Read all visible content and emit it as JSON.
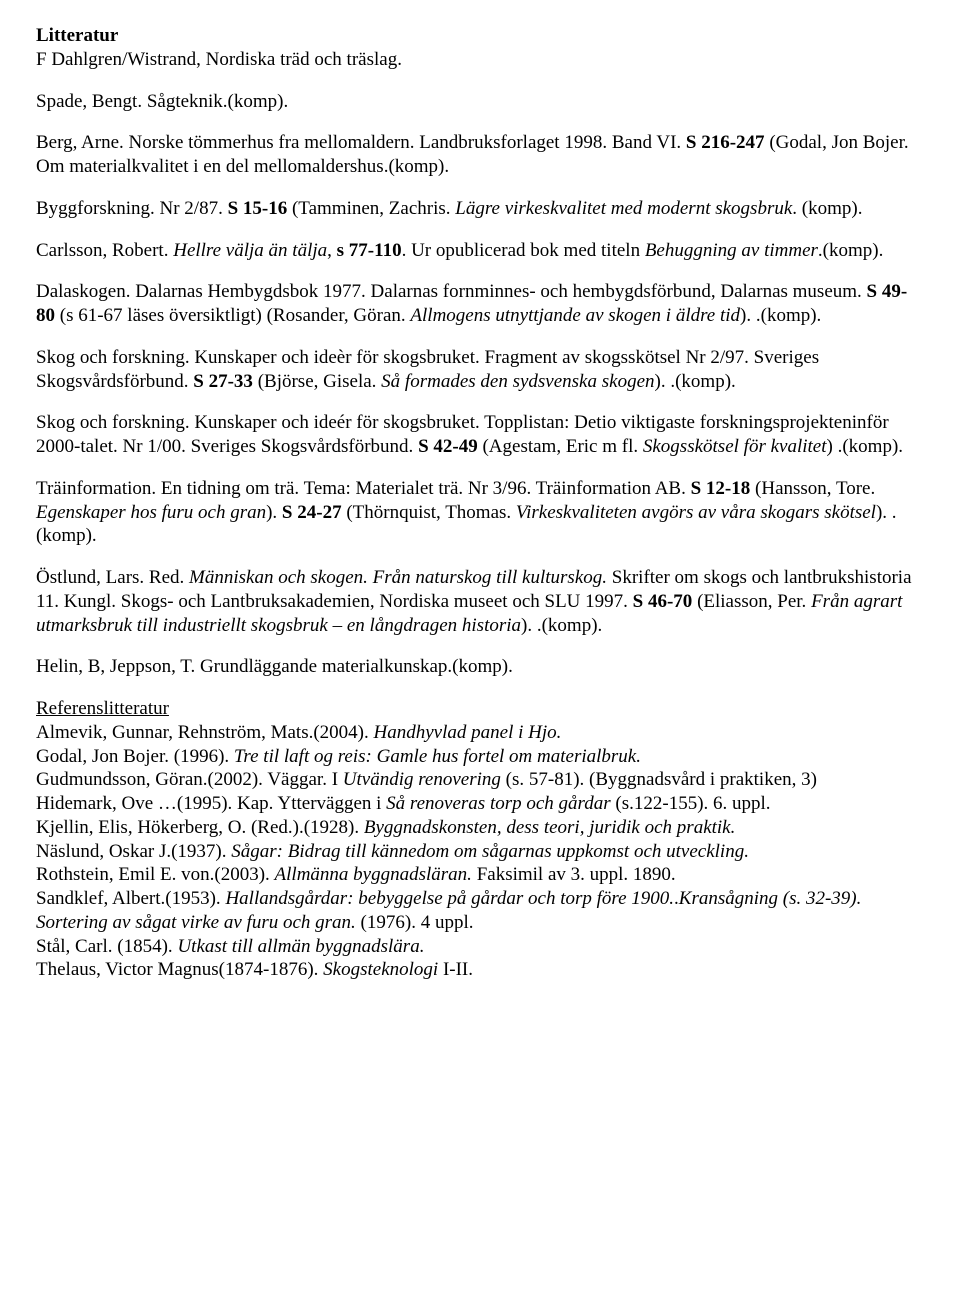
{
  "heading": "Litteratur",
  "p1_line1": "F Dahlgren/Wistrand, Nordiska träd och träslag.",
  "p2_line1": "Spade, Bengt. Sågteknik.(komp).",
  "p3": {
    "a": "Berg, Arne. Norske tömmerhus fra mellomaldern. Landbruksforlaget 1998. Band VI. ",
    "b": "S 216-247",
    "c": " (Godal, Jon Bojer. Om materialkvalitet i en del mellomaldershus.(komp)."
  },
  "p4": {
    "a": "Byggforskning. Nr 2/87. ",
    "b": "S 15-16",
    "c": " (Tamminen, Zachris. ",
    "d": "Lägre virkeskvalitet med modernt skogsbruk",
    "e": ". (komp)."
  },
  "p5": {
    "a": "Carlsson, Robert. ",
    "b": "Hellre välja än tälja",
    "c": ", ",
    "d": "s 77-110",
    "e": ". Ur opublicerad bok med titeln ",
    "f": "Behuggning av timmer",
    "g": ".(komp)."
  },
  "p6": {
    "a": "Dalaskogen. Dalarnas Hembygdsbok 1977. Dalarnas fornminnes- och hembygdsförbund, Dalarnas museum. ",
    "b": "S 49-80",
    "c": " (s 61-67 läses översiktligt) (Rosander, Göran. ",
    "d": "Allmogens utnyttjande av skogen i äldre tid",
    "e": "). .(komp)."
  },
  "p7": {
    "a": "Skog och forskning. Kunskaper och ideèr för skogsbruket. Fragment av skogsskötsel Nr 2/97. Sveriges Skogsvårdsförbund. ",
    "b": "S 27-33",
    "c": " (Björse, Gisela. ",
    "d": "Så formades den sydsvenska skogen",
    "e": "). .(komp)."
  },
  "p8": {
    "a": "Skog och forskning. Kunskaper och ideér för skogsbruket. Topplistan: Detio viktigaste forskningsprojekteninför 2000-talet. Nr 1/00. Sveriges Skogsvårdsförbund. ",
    "b": "S 42-49",
    "c": " (Agestam, Eric m fl. ",
    "d": "Skogsskötsel för kvalitet",
    "e": ") .(komp)."
  },
  "p9": {
    "a": "Träinformation. En tidning om trä. Tema: Materialet trä. Nr 3/96. Träinformation AB. ",
    "b": "S 12-18",
    "c": " (Hansson, Tore. ",
    "d": "Egenskaper hos furu och gran",
    "e": "). ",
    "f": "S 24-27",
    "g": " (Thörnquist, Thomas. ",
    "h": "Virkeskvaliteten avgörs av våra skogars skötsel",
    "i": "). .(komp)."
  },
  "p10": {
    "a": "Östlund, Lars. Red. ",
    "b": "Människan och skogen. Från naturskog till kulturskog.",
    "c": " Skrifter om skogs och lantbrukshistoria 11. Kungl. Skogs- och Lantbruksakademien, Nordiska museet och SLU 1997. ",
    "d": "S 46-70",
    "e": " (Eliasson, Per. ",
    "f": "Från agrart utmarksbruk till industriellt skogsbruk – en långdragen historia",
    "g": "). .(komp)."
  },
  "p11": "Helin, B, Jeppson, T. Grundläggande materialkunskap.(komp).",
  "ref_head": "Referenslitteratur",
  "r1": {
    "a": "Almevik, Gunnar, Rehnström, Mats.(2004). ",
    "b": "Handhyvlad panel i Hjo."
  },
  "r2": {
    "a": "Godal, Jon Bojer. (1996). ",
    "b": "Tre til laft og reis: Gamle hus fortel om materialbruk."
  },
  "r3": {
    "a": "Gudmundsson, Göran.(2002). Väggar. I ",
    "b": "Utvändig renovering",
    "c": " (s. 57-81). (Byggnadsvård i praktiken, 3)"
  },
  "r4": {
    "a": "Hidemark, Ove …(1995). Kap. Ytterväggen i ",
    "b": "Så renoveras torp och gårdar",
    "c": " (s.122-155). 6. uppl."
  },
  "r5": {
    "a": "Kjellin, Elis, Hökerberg, O. (Red.).(1928). ",
    "b": "Byggnadskonsten, dess teori, juridik och praktik."
  },
  "r6": {
    "a": "Näslund, Oskar J.(1937). ",
    "b": "Sågar: Bidrag till kännedom om sågarnas uppkomst och utveckling."
  },
  "r7": {
    "a": "Rothstein, Emil E. von.(2003). ",
    "b": "Allmänna byggnadsläran.",
    "c": " Faksimil av 3. uppl. 1890."
  },
  "r8": {
    "a": "Sandklef, Albert.(1953). ",
    "b": "Hallandsgårdar: bebyggelse på gårdar och torp före 1900.",
    "c": ".",
    "d": "Kransågning (s. 32-39)."
  },
  "r9": {
    "a": "Sortering av sågat virke av furu och gran.",
    "b": " (1976). 4 uppl."
  },
  "r10": {
    "a": "Stål, Carl. (1854). ",
    "b": "Utkast till allmän byggnadslära."
  },
  "r11": {
    "a": "Thelaus, Victor Magnus(1874-1876). ",
    "b": "Skogsteknologi",
    "c": " I-II."
  }
}
